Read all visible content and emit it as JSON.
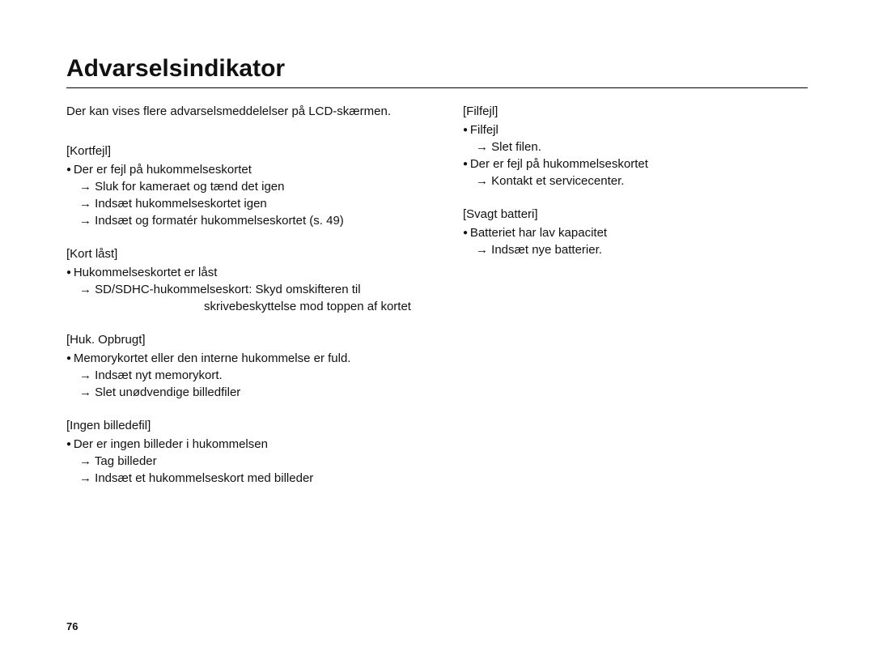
{
  "title": "Advarselsindikator",
  "intro": "Der kan vises flere advarselsmeddelelser på LCD-skærmen.",
  "page_number": "76",
  "sections_left": [
    {
      "head": "[Kortfejl]",
      "bullet": "Der er fejl på hukommelseskortet",
      "arrows": [
        "Sluk for kameraet og tænd det igen",
        "Indsæt hukommelseskortet igen",
        "Indsæt og formatér hukommelseskortet (s. 49)"
      ]
    },
    {
      "head": "[Kort låst]",
      "bullet": "Hukommelseskortet er låst",
      "arrows": [
        "SD/SDHC-hukommelseskort: Skyd omskifteren til"
      ],
      "wrap": "skrivebeskyttelse mod toppen af kortet"
    },
    {
      "head": "[Huk. Opbrugt]",
      "bullet": "Memorykortet eller den interne hukommelse er fuld.",
      "arrows": [
        "Indsæt nyt memorykort.",
        " Slet unødvendige billedfiler"
      ]
    },
    {
      "head": "[Ingen billedefil]",
      "bullet": "Der er ingen billeder i hukommelsen",
      "arrows": [
        "Tag billeder",
        "Indsæt et hukommelseskort med billeder"
      ]
    }
  ],
  "sections_right": [
    {
      "head": "[Filfejl]",
      "bullet": "Filfejl",
      "arrows": [
        "Slet filen."
      ],
      "bullet2": "Der er fejl på hukommelseskortet",
      "arrows2": [
        "Kontakt et servicecenter."
      ]
    },
    {
      "head": "[Svagt batteri]",
      "bullet": "Batteriet har lav kapacitet",
      "arrows": [
        "Indsæt nye batterier."
      ]
    }
  ]
}
